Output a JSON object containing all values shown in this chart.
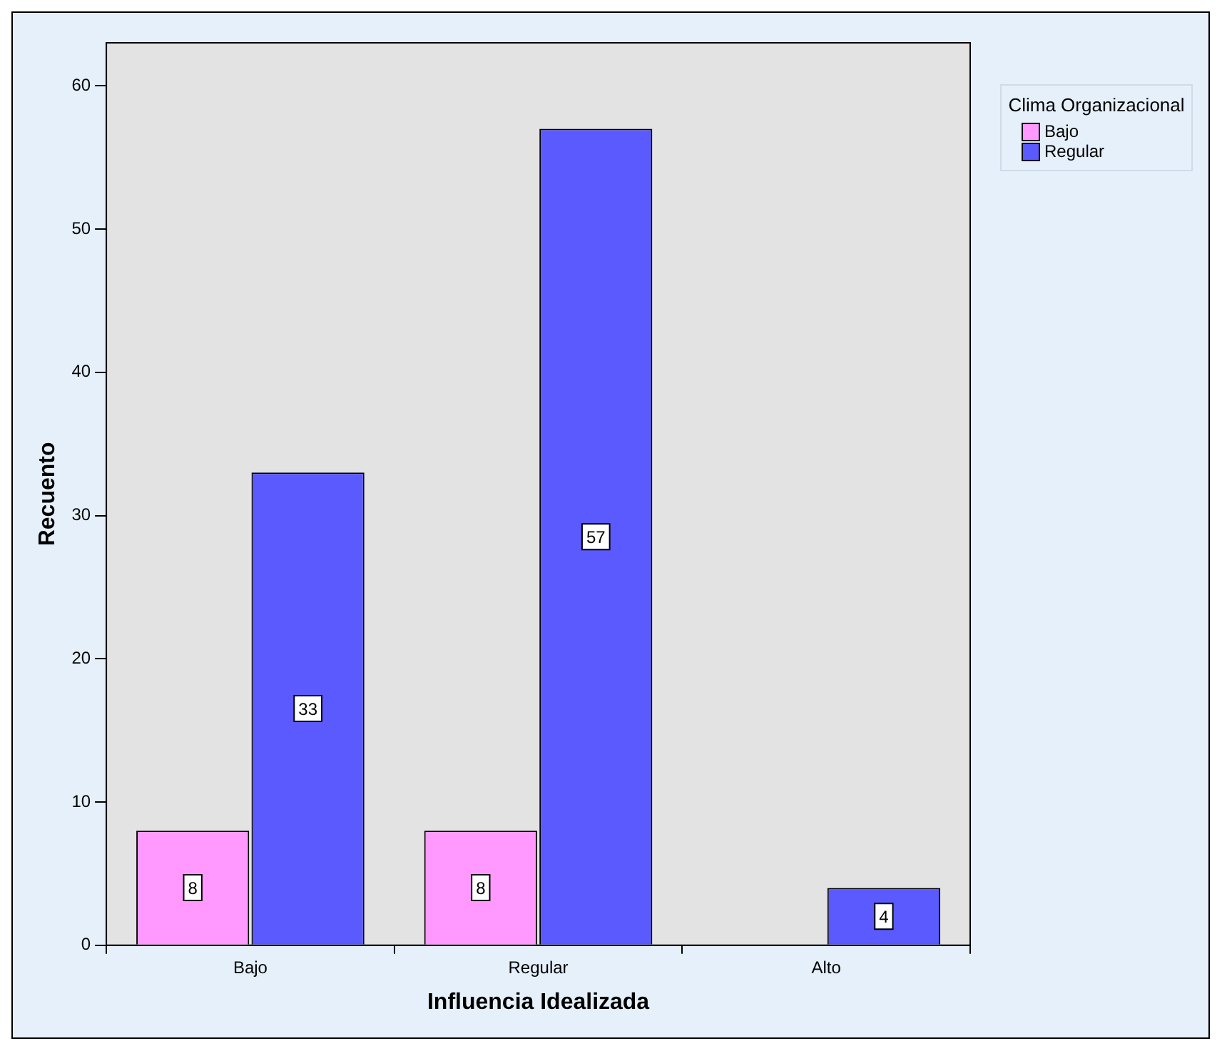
{
  "chart_data": {
    "type": "bar",
    "xlabel": "Influencia Idealizada",
    "ylabel": "Recuento",
    "legend_title": "Clima Organizacional",
    "categories": [
      "Bajo",
      "Regular",
      "Alto"
    ],
    "series": [
      {
        "name": "Bajo",
        "color": "#ff99ff",
        "values": [
          8,
          8,
          null
        ]
      },
      {
        "name": "Regular",
        "color": "#5a5aff",
        "values": [
          33,
          57,
          4
        ]
      }
    ],
    "ylim": [
      0,
      63
    ],
    "yticks": [
      0,
      10,
      20,
      30,
      40,
      50,
      60
    ],
    "grid": false,
    "legend": "right",
    "data_labels": true
  }
}
